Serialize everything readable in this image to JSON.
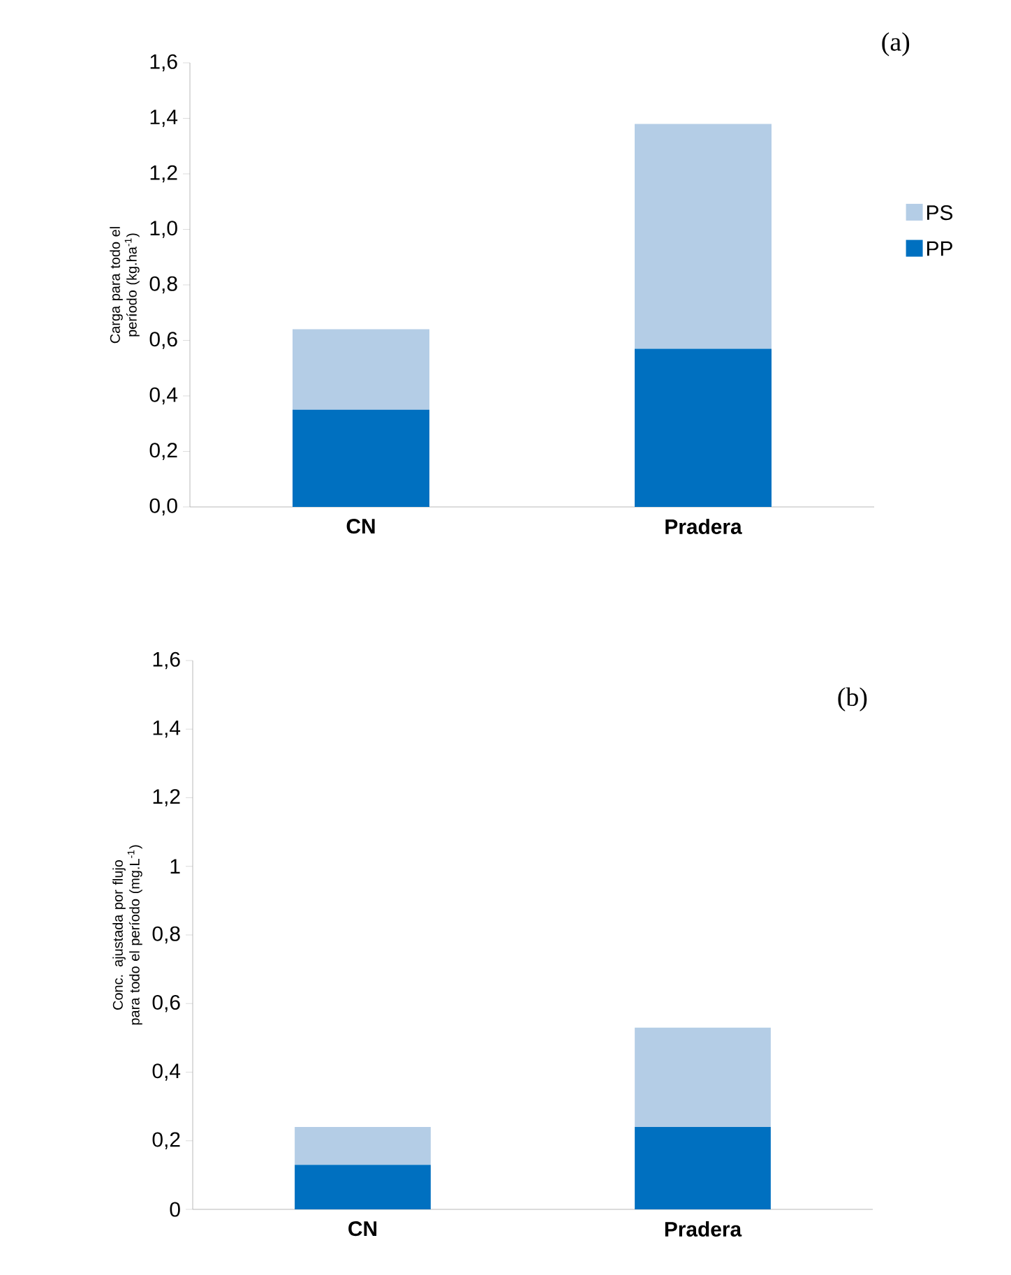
{
  "chart_data": [
    {
      "type": "bar",
      "stacked": true,
      "categories": [
        "CN",
        "Pradera"
      ],
      "ylabel": "Carga para todo el período (kg.ha$^{-1}$)",
      "annotations": [
        "(a)"
      ],
      "legend": "right",
      "series": [
        {
          "name": "PP",
          "color": "#0070c0",
          "values": [
            0.35,
            0.57
          ]
        },
        {
          "name": "PS",
          "color": "#b4cde6",
          "values": [
            0.29,
            0.81
          ]
        }
      ],
      "ylim": [
        0,
        1.6
      ],
      "yticks": [
        {
          "value": 0,
          "label": "0,0"
        },
        {
          "value": 0.2,
          "label": "0,2"
        },
        {
          "value": 0.4,
          "label": "0,4"
        },
        {
          "value": 0.6,
          "label": "0,6"
        },
        {
          "value": 0.8,
          "label": "0,8"
        },
        {
          "value": 1.0,
          "label": "1,0"
        },
        {
          "value": 1.2,
          "label": "1,2"
        },
        {
          "value": 1.4,
          "label": "1,4"
        },
        {
          "value": 1.6,
          "label": "1,6"
        }
      ]
    },
    {
      "type": "bar",
      "stacked": true,
      "categories": [
        "CN",
        "Pradera"
      ],
      "ylabel": "Conc. ajustada por flujo para todo el período (mg.L$^{-1}$)",
      "annotations": [
        "(b)"
      ],
      "series": [
        {
          "color": "#0070c0",
          "values": [
            0.13,
            0.24
          ]
        },
        {
          "color": "#b4cde6",
          "values": [
            0.11,
            0.29
          ]
        }
      ],
      "ylim": [
        0,
        1.6
      ],
      "yticks": [
        0,
        {
          "value": 0.2,
          "label": "0,2"
        },
        {
          "value": 0.4,
          "label": "0,4"
        },
        {
          "value": 0.6,
          "label": "0,6"
        },
        {
          "value": 0.8,
          "label": "0,8"
        },
        1,
        {
          "value": 1.2,
          "label": "1,2"
        },
        {
          "value": 1.4,
          "label": "1,4"
        },
        {
          "value": 1.6,
          "label": "1,6"
        }
      ]
    }
  ]
}
